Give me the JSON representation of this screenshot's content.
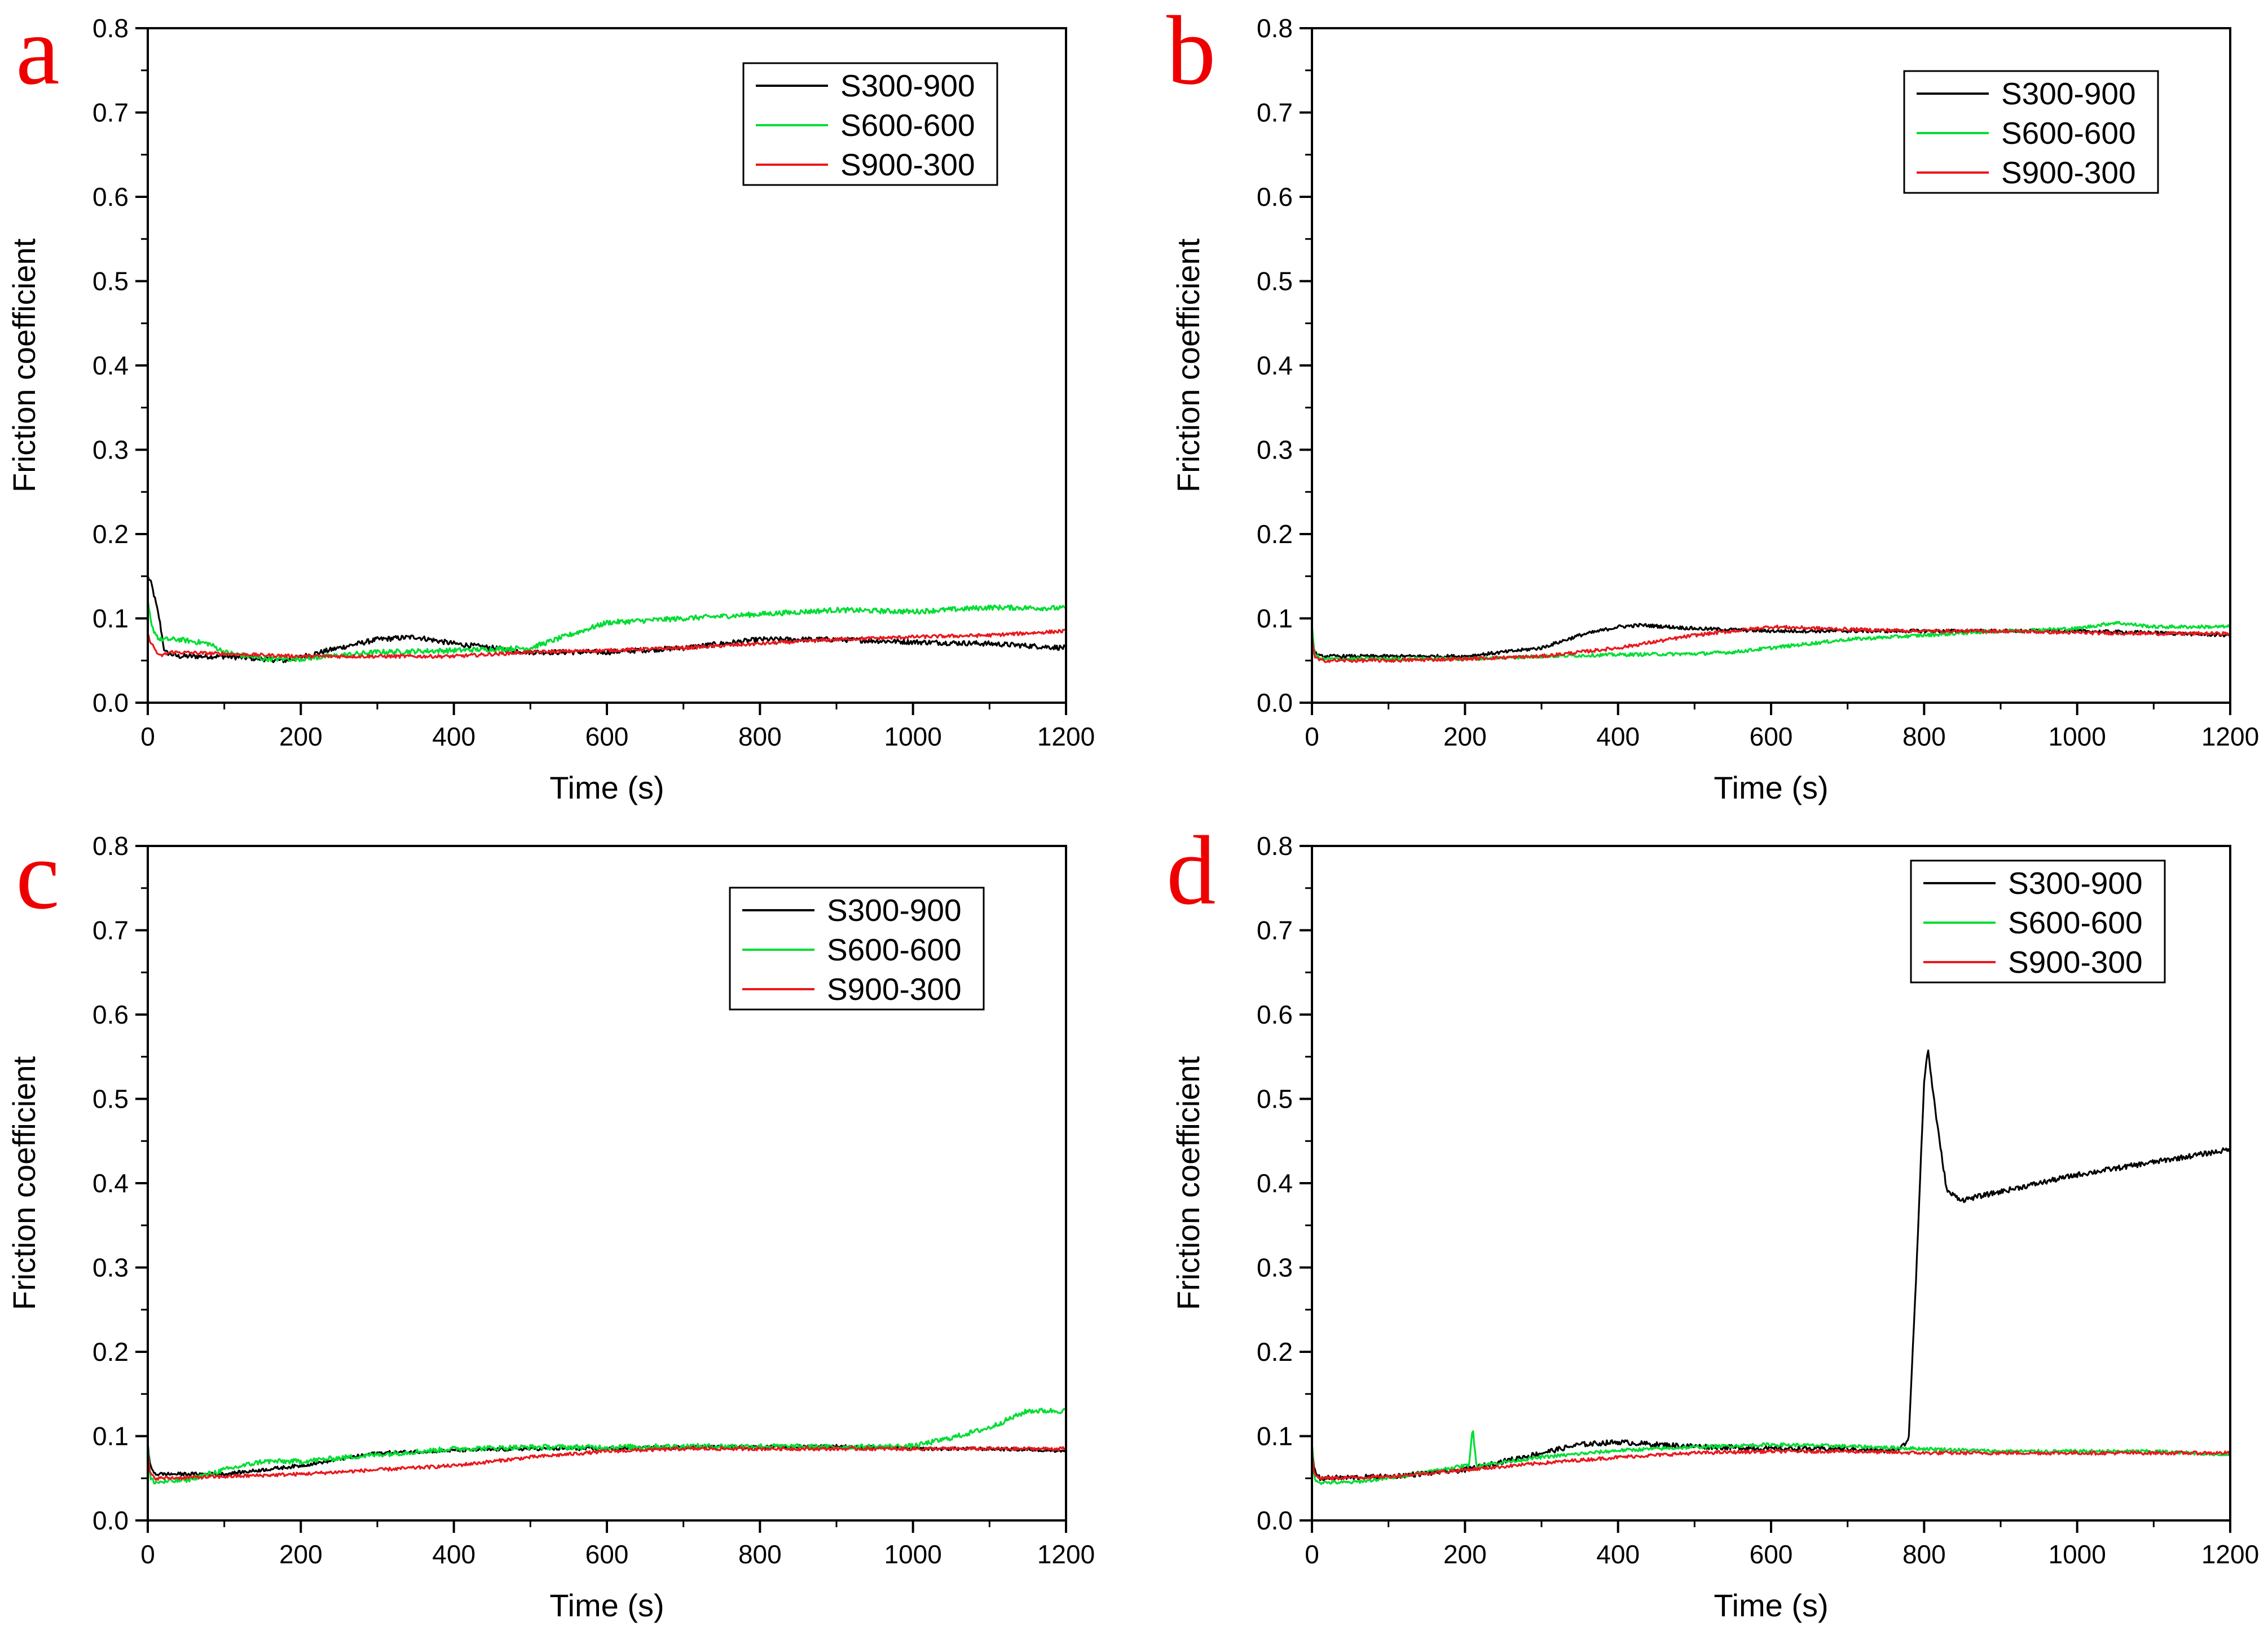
{
  "figure": {
    "colors": {
      "S300-900": "#000000",
      "S600-600": "#00dd33",
      "S900-300": "#e8191e",
      "panel_letter": "#ee0000"
    }
  },
  "chart_data": [
    {
      "panel": "a",
      "type": "line",
      "xlabel": "Time (s)",
      "ylabel": "Friction coefficient",
      "xlim": [
        0,
        1200
      ],
      "ylim": [
        0,
        0.8
      ],
      "xticks": [
        "0",
        "200",
        "400",
        "600",
        "800",
        "1000",
        "1200"
      ],
      "yticks": [
        "0.0",
        "0.1",
        "0.2",
        "0.3",
        "0.4",
        "0.5",
        "0.6",
        "0.7",
        "0.8"
      ],
      "legend": {
        "position": "top-right",
        "entries": [
          "S300-900",
          "S600-600",
          "S900-300"
        ]
      },
      "series": [
        {
          "name": "S300-900",
          "color": "#000000",
          "noise": 0.003,
          "x": [
            0,
            5,
            15,
            22,
            40,
            100,
            180,
            250,
            300,
            350,
            400,
            450,
            500,
            600,
            700,
            800,
            900,
            1000,
            1100,
            1200
          ],
          "y": [
            0.15,
            0.14,
            0.1,
            0.06,
            0.055,
            0.055,
            0.05,
            0.065,
            0.075,
            0.078,
            0.07,
            0.065,
            0.06,
            0.06,
            0.065,
            0.075,
            0.075,
            0.072,
            0.07,
            0.065
          ]
        },
        {
          "name": "S600-600",
          "color": "#00dd33",
          "noise": 0.003,
          "x": [
            0,
            5,
            15,
            40,
            80,
            100,
            150,
            200,
            300,
            400,
            500,
            600,
            700,
            800,
            900,
            1000,
            1100,
            1200
          ],
          "y": [
            0.12,
            0.09,
            0.075,
            0.075,
            0.07,
            0.06,
            0.052,
            0.052,
            0.06,
            0.062,
            0.065,
            0.095,
            0.1,
            0.105,
            0.11,
            0.108,
            0.113,
            0.112
          ]
        },
        {
          "name": "S900-300",
          "color": "#e8191e",
          "noise": 0.002,
          "x": [
            0,
            5,
            15,
            30,
            100,
            200,
            300,
            400,
            500,
            600,
            700,
            800,
            900,
            1000,
            1100,
            1200
          ],
          "y": [
            0.08,
            0.07,
            0.055,
            0.06,
            0.058,
            0.055,
            0.055,
            0.055,
            0.06,
            0.062,
            0.065,
            0.07,
            0.075,
            0.078,
            0.08,
            0.085
          ]
        }
      ]
    },
    {
      "panel": "b",
      "type": "line",
      "xlabel": "Time (s)",
      "ylabel": "Friction coefficient",
      "xlim": [
        0,
        1200
      ],
      "ylim": [
        0,
        0.8
      ],
      "xticks": [
        "0",
        "200",
        "400",
        "600",
        "800",
        "1000",
        "1200"
      ],
      "yticks": [
        "0.0",
        "0.1",
        "0.2",
        "0.3",
        "0.4",
        "0.5",
        "0.6",
        "0.7",
        "0.8"
      ],
      "legend": {
        "position": "top-right",
        "entries": [
          "S300-900",
          "S600-600",
          "S900-300"
        ]
      },
      "series": [
        {
          "name": "S300-900",
          "color": "#000000",
          "noise": 0.002,
          "x": [
            0,
            3,
            10,
            50,
            100,
            200,
            250,
            300,
            350,
            400,
            430,
            500,
            600,
            700,
            800,
            900,
            1000,
            1100,
            1200
          ],
          "y": [
            0.09,
            0.06,
            0.055,
            0.055,
            0.055,
            0.055,
            0.06,
            0.065,
            0.08,
            0.09,
            0.092,
            0.088,
            0.085,
            0.085,
            0.085,
            0.085,
            0.085,
            0.083,
            0.08
          ]
        },
        {
          "name": "S600-600",
          "color": "#00dd33",
          "noise": 0.002,
          "x": [
            0,
            3,
            10,
            100,
            200,
            300,
            400,
            500,
            550,
            600,
            700,
            800,
            900,
            1000,
            1050,
            1100,
            1200
          ],
          "y": [
            0.09,
            0.06,
            0.052,
            0.052,
            0.052,
            0.055,
            0.057,
            0.058,
            0.06,
            0.065,
            0.075,
            0.08,
            0.085,
            0.088,
            0.095,
            0.09,
            0.09
          ]
        },
        {
          "name": "S900-300",
          "color": "#e8191e",
          "noise": 0.002,
          "x": [
            0,
            3,
            10,
            100,
            200,
            300,
            400,
            500,
            600,
            700,
            800,
            900,
            1000,
            1100,
            1200
          ],
          "y": [
            0.08,
            0.055,
            0.05,
            0.05,
            0.052,
            0.055,
            0.065,
            0.08,
            0.09,
            0.087,
            0.085,
            0.085,
            0.083,
            0.082,
            0.082
          ]
        }
      ]
    },
    {
      "panel": "c",
      "type": "line",
      "xlabel": "Time (s)",
      "ylabel": "Friction coefficient",
      "xlim": [
        0,
        1200
      ],
      "ylim": [
        0,
        0.8
      ],
      "xticks": [
        "0",
        "200",
        "400",
        "600",
        "800",
        "1000",
        "1200"
      ],
      "yticks": [
        "0.0",
        "0.1",
        "0.2",
        "0.3",
        "0.4",
        "0.5",
        "0.6",
        "0.7",
        "0.8"
      ],
      "legend": {
        "position": "top-right",
        "entries": [
          "S300-900",
          "S600-600",
          "S900-300"
        ]
      },
      "series": [
        {
          "name": "S300-900",
          "color": "#000000",
          "noise": 0.002,
          "x": [
            0,
            3,
            10,
            50,
            100,
            200,
            300,
            400,
            500,
            600,
            700,
            800,
            900,
            1000,
            1100,
            1200
          ],
          "y": [
            0.09,
            0.065,
            0.055,
            0.055,
            0.055,
            0.065,
            0.08,
            0.083,
            0.085,
            0.085,
            0.087,
            0.087,
            0.088,
            0.085,
            0.085,
            0.083
          ]
        },
        {
          "name": "S600-600",
          "color": "#00dd33",
          "noise": 0.003,
          "x": [
            0,
            3,
            10,
            50,
            100,
            150,
            200,
            300,
            400,
            500,
            600,
            700,
            800,
            900,
            1000,
            1050,
            1100,
            1150,
            1200
          ],
          "y": [
            0.09,
            0.05,
            0.045,
            0.048,
            0.06,
            0.07,
            0.07,
            0.078,
            0.085,
            0.087,
            0.087,
            0.088,
            0.088,
            0.087,
            0.088,
            0.098,
            0.11,
            0.13,
            0.13
          ]
        },
        {
          "name": "S900-300",
          "color": "#e8191e",
          "noise": 0.002,
          "x": [
            0,
            3,
            10,
            100,
            200,
            300,
            400,
            500,
            600,
            700,
            800,
            900,
            1000,
            1100,
            1200
          ],
          "y": [
            0.08,
            0.055,
            0.05,
            0.052,
            0.055,
            0.06,
            0.065,
            0.075,
            0.082,
            0.085,
            0.085,
            0.085,
            0.085,
            0.085,
            0.085
          ]
        }
      ]
    },
    {
      "panel": "d",
      "type": "line",
      "xlabel": "Time (s)",
      "ylabel": "Friction coefficient",
      "xlim": [
        0,
        1200
      ],
      "ylim": [
        0,
        0.8
      ],
      "xticks": [
        "0",
        "200",
        "400",
        "600",
        "800",
        "1000",
        "1200"
      ],
      "yticks": [
        "0.0",
        "0.1",
        "0.2",
        "0.3",
        "0.4",
        "0.5",
        "0.6",
        "0.7",
        "0.8"
      ],
      "legend": {
        "position": "top-right",
        "entries": [
          "S300-900",
          "S600-600",
          "S900-300"
        ]
      },
      "series": [
        {
          "name": "S300-900",
          "color": "#000000",
          "noise": 0.003,
          "x": [
            0,
            3,
            10,
            100,
            200,
            300,
            350,
            400,
            450,
            500,
            600,
            700,
            760,
            775,
            780,
            790,
            800,
            805,
            810,
            820,
            830,
            850,
            900,
            1000,
            1100,
            1200
          ],
          "y": [
            0.09,
            0.06,
            0.05,
            0.052,
            0.06,
            0.08,
            0.09,
            0.093,
            0.09,
            0.088,
            0.085,
            0.085,
            0.082,
            0.09,
            0.1,
            0.3,
            0.52,
            0.56,
            0.52,
            0.45,
            0.39,
            0.38,
            0.39,
            0.41,
            0.425,
            0.44
          ]
        },
        {
          "name": "S600-600",
          "color": "#00dd33",
          "noise": 0.002,
          "x": [
            0,
            3,
            10,
            50,
            100,
            200,
            205,
            210,
            215,
            300,
            400,
            500,
            600,
            700,
            800,
            900,
            1000,
            1100,
            1200
          ],
          "y": [
            0.09,
            0.05,
            0.045,
            0.045,
            0.05,
            0.065,
            0.065,
            0.11,
            0.065,
            0.075,
            0.083,
            0.087,
            0.09,
            0.088,
            0.085,
            0.082,
            0.082,
            0.082,
            0.078
          ]
        },
        {
          "name": "S900-300",
          "color": "#e8191e",
          "noise": 0.002,
          "x": [
            0,
            3,
            10,
            100,
            200,
            300,
            400,
            500,
            600,
            700,
            800,
            900,
            1000,
            1100,
            1200
          ],
          "y": [
            0.08,
            0.055,
            0.05,
            0.052,
            0.06,
            0.068,
            0.075,
            0.08,
            0.082,
            0.082,
            0.08,
            0.08,
            0.08,
            0.08,
            0.08
          ]
        }
      ]
    }
  ]
}
